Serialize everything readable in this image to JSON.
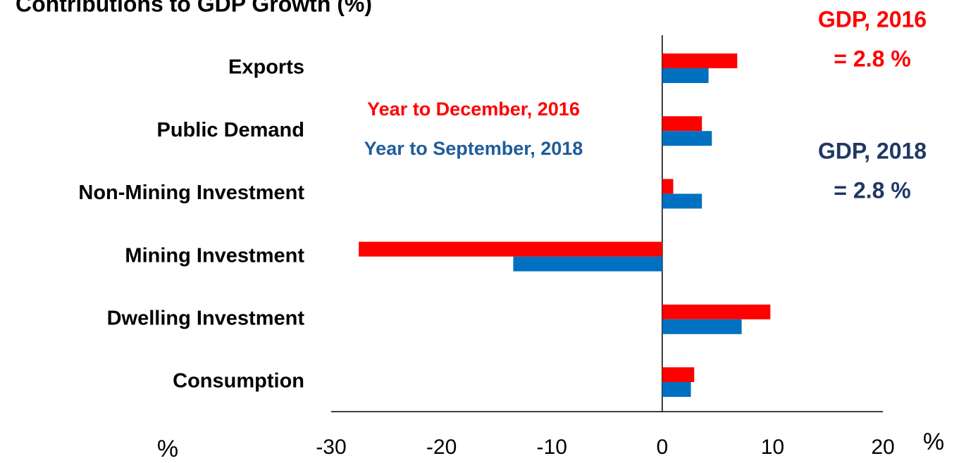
{
  "chart_data": {
    "type": "hbar",
    "title": "Contributions to GDP Growth (%)",
    "categories": [
      "Exports",
      "Public Demand",
      "Non-Mining Investment",
      "Mining Investment",
      "Dwelling Investment",
      "Consumption"
    ],
    "series": [
      {
        "name": "Year to December, 2016",
        "color": "#ff0000",
        "values": [
          6.8,
          3.6,
          1.0,
          -27.5,
          9.8,
          2.9
        ]
      },
      {
        "name": "Year to September, 2018",
        "color": "#0070c0",
        "values": [
          4.2,
          4.5,
          3.6,
          -13.5,
          7.2,
          2.6
        ]
      }
    ],
    "legend_colors": [
      "#ff0000",
      "#1f5c99"
    ],
    "xlim": [
      -30,
      20
    ],
    "xticks": [
      -30,
      -20,
      -10,
      0,
      10,
      20
    ],
    "axis_labels": [
      "%",
      "%"
    ],
    "annotations": [
      {
        "text": "GDP, 2016",
        "color": "#ff0000"
      },
      {
        "text": "= 2.8 %",
        "color": "#ff0000"
      },
      {
        "text": "GDP, 2018",
        "color": "#203864"
      },
      {
        "text": "= 2.8 %",
        "color": "#203864"
      }
    ],
    "grid": false
  }
}
